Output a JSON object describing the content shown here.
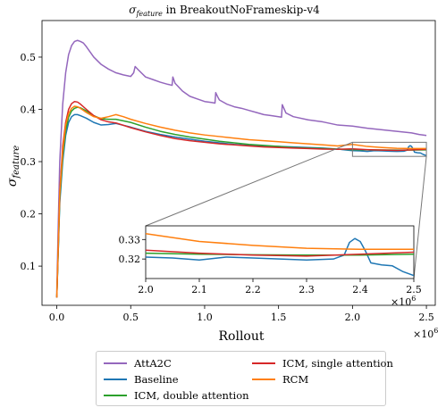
{
  "chart_data": {
    "type": "line",
    "title_main": "σ",
    "title_sub": "feature",
    "title_rest": " in BreakoutNoFrameskip-v4",
    "xlabel": "Rollout",
    "ylabel_main": "σ",
    "ylabel_sub": "feature",
    "x_multiplier_base": "×10",
    "x_multiplier_exp": "6",
    "xlim": [
      -0.1,
      2.56
    ],
    "ylim": [
      0.025,
      0.57
    ],
    "xticks": [
      0.0,
      0.5,
      1.0,
      1.5,
      2.0,
      2.5
    ],
    "xtick_labels": [
      "0.0",
      "0.5",
      "1.0",
      "1.5",
      "2.0",
      "2.5"
    ],
    "yticks": [
      0.1,
      0.2,
      0.3,
      0.4,
      0.5
    ],
    "ytick_labels": [
      "0.1",
      "0.2",
      "0.3",
      "0.4",
      "0.5"
    ],
    "grid": false,
    "legend_placement": "below",
    "inset": {
      "xlim": [
        2.0,
        2.5
      ],
      "ylim": [
        0.31,
        0.337
      ],
      "xticks": [
        2.0,
        2.1,
        2.2,
        2.3,
        2.4,
        2.5
      ],
      "xtick_labels": [
        "2.0",
        "2.1",
        "2.2",
        "2.3",
        "2.4",
        "2.5"
      ],
      "yticks": [
        0.32,
        0.33
      ],
      "ytick_labels": [
        "0.32",
        "0.33"
      ],
      "x_multiplier_base": "×10",
      "x_multiplier_exp": "6"
    },
    "series": [
      {
        "name": "AttA2C",
        "color": "#9467bd",
        "x": [
          0,
          0.01,
          0.02,
          0.04,
          0.06,
          0.08,
          0.1,
          0.12,
          0.14,
          0.16,
          0.18,
          0.2,
          0.25,
          0.3,
          0.35,
          0.4,
          0.45,
          0.5,
          0.52,
          0.53,
          0.55,
          0.6,
          0.65,
          0.7,
          0.75,
          0.78,
          0.785,
          0.8,
          0.85,
          0.9,
          0.95,
          1.0,
          1.05,
          1.07,
          1.075,
          1.09,
          1.1,
          1.15,
          1.2,
          1.25,
          1.3,
          1.35,
          1.4,
          1.45,
          1.5,
          1.52,
          1.525,
          1.55,
          1.6,
          1.7,
          1.8,
          1.9,
          2.0,
          2.1,
          2.2,
          2.3,
          2.4,
          2.45,
          2.5
        ],
        "y": [
          0.05,
          0.18,
          0.3,
          0.41,
          0.47,
          0.505,
          0.522,
          0.53,
          0.532,
          0.53,
          0.527,
          0.52,
          0.5,
          0.486,
          0.477,
          0.47,
          0.466,
          0.463,
          0.47,
          0.482,
          0.476,
          0.462,
          0.457,
          0.452,
          0.448,
          0.446,
          0.462,
          0.45,
          0.435,
          0.425,
          0.42,
          0.415,
          0.413,
          0.412,
          0.432,
          0.423,
          0.418,
          0.41,
          0.405,
          0.402,
          0.398,
          0.394,
          0.39,
          0.388,
          0.386,
          0.385,
          0.409,
          0.393,
          0.386,
          0.38,
          0.376,
          0.37,
          0.368,
          0.364,
          0.361,
          0.358,
          0.355,
          0.352,
          0.35
        ]
      },
      {
        "name": "Baseline",
        "color": "#1f77b4",
        "x": [
          0,
          0.01,
          0.02,
          0.04,
          0.06,
          0.08,
          0.1,
          0.12,
          0.14,
          0.16,
          0.2,
          0.25,
          0.3,
          0.35,
          0.4,
          0.5,
          0.6,
          0.7,
          0.8,
          0.9,
          1.0,
          1.1,
          1.2,
          1.3,
          1.4,
          1.5,
          1.6,
          1.7,
          1.8,
          1.9,
          2.0,
          2.05,
          2.1,
          2.15,
          2.2,
          2.25,
          2.3,
          2.35,
          2.37,
          2.38,
          2.39,
          2.4,
          2.41,
          2.42,
          2.43,
          2.44,
          2.46,
          2.48,
          2.5
        ],
        "y": [
          0.04,
          0.13,
          0.22,
          0.3,
          0.35,
          0.375,
          0.386,
          0.39,
          0.39,
          0.388,
          0.383,
          0.375,
          0.37,
          0.371,
          0.373,
          0.366,
          0.358,
          0.352,
          0.347,
          0.343,
          0.339,
          0.336,
          0.333,
          0.331,
          0.33,
          0.329,
          0.328,
          0.327,
          0.326,
          0.324,
          0.321,
          0.3205,
          0.3195,
          0.321,
          0.3205,
          0.32,
          0.3195,
          0.32,
          0.322,
          0.3285,
          0.3305,
          0.329,
          0.324,
          0.318,
          0.3175,
          0.317,
          0.3165,
          0.3135,
          0.3115
        ]
      },
      {
        "name": "ICM, double attention",
        "color": "#2ca02c",
        "x": [
          0,
          0.01,
          0.02,
          0.04,
          0.06,
          0.08,
          0.1,
          0.12,
          0.14,
          0.16,
          0.2,
          0.25,
          0.3,
          0.35,
          0.4,
          0.5,
          0.6,
          0.7,
          0.8,
          0.9,
          1.0,
          1.1,
          1.2,
          1.3,
          1.4,
          1.5,
          1.6,
          1.7,
          1.8,
          1.9,
          2.0,
          2.1,
          2.2,
          2.3,
          2.4,
          2.5
        ],
        "y": [
          0.04,
          0.13,
          0.23,
          0.31,
          0.36,
          0.385,
          0.397,
          0.402,
          0.404,
          0.403,
          0.397,
          0.388,
          0.382,
          0.381,
          0.381,
          0.375,
          0.366,
          0.358,
          0.352,
          0.347,
          0.343,
          0.339,
          0.336,
          0.333,
          0.331,
          0.329,
          0.327,
          0.326,
          0.325,
          0.324,
          0.323,
          0.3225,
          0.3222,
          0.322,
          0.322,
          0.3225
        ]
      },
      {
        "name": "ICM, single attention",
        "color": "#d62728",
        "x": [
          0,
          0.01,
          0.02,
          0.04,
          0.06,
          0.08,
          0.1,
          0.12,
          0.14,
          0.16,
          0.2,
          0.25,
          0.3,
          0.35,
          0.4,
          0.5,
          0.6,
          0.7,
          0.8,
          0.9,
          1.0,
          1.1,
          1.2,
          1.3,
          1.4,
          1.5,
          1.6,
          1.7,
          1.8,
          1.9,
          2.0,
          2.1,
          2.2,
          2.3,
          2.4,
          2.5
        ],
        "y": [
          0.04,
          0.14,
          0.24,
          0.33,
          0.375,
          0.4,
          0.411,
          0.415,
          0.414,
          0.41,
          0.4,
          0.388,
          0.38,
          0.376,
          0.374,
          0.365,
          0.357,
          0.35,
          0.344,
          0.34,
          0.337,
          0.334,
          0.332,
          0.33,
          0.328,
          0.327,
          0.326,
          0.325,
          0.324,
          0.3235,
          0.3245,
          0.323,
          0.322,
          0.3215,
          0.3225,
          0.3235
        ]
      },
      {
        "name": "RCM",
        "color": "#ff7f0e",
        "x": [
          0,
          0.01,
          0.02,
          0.04,
          0.06,
          0.08,
          0.1,
          0.12,
          0.14,
          0.16,
          0.2,
          0.25,
          0.3,
          0.35,
          0.4,
          0.45,
          0.5,
          0.6,
          0.7,
          0.8,
          0.9,
          1.0,
          1.1,
          1.2,
          1.3,
          1.4,
          1.5,
          1.6,
          1.7,
          1.8,
          1.9,
          2.0,
          2.1,
          2.2,
          2.3,
          2.4,
          2.5
        ],
        "y": [
          0.04,
          0.14,
          0.24,
          0.32,
          0.37,
          0.392,
          0.402,
          0.406,
          0.405,
          0.402,
          0.394,
          0.386,
          0.383,
          0.386,
          0.39,
          0.386,
          0.381,
          0.373,
          0.366,
          0.36,
          0.355,
          0.351,
          0.348,
          0.345,
          0.342,
          0.34,
          0.338,
          0.336,
          0.334,
          0.332,
          0.33,
          0.333,
          0.329,
          0.327,
          0.3255,
          0.325,
          0.325
        ]
      }
    ]
  }
}
